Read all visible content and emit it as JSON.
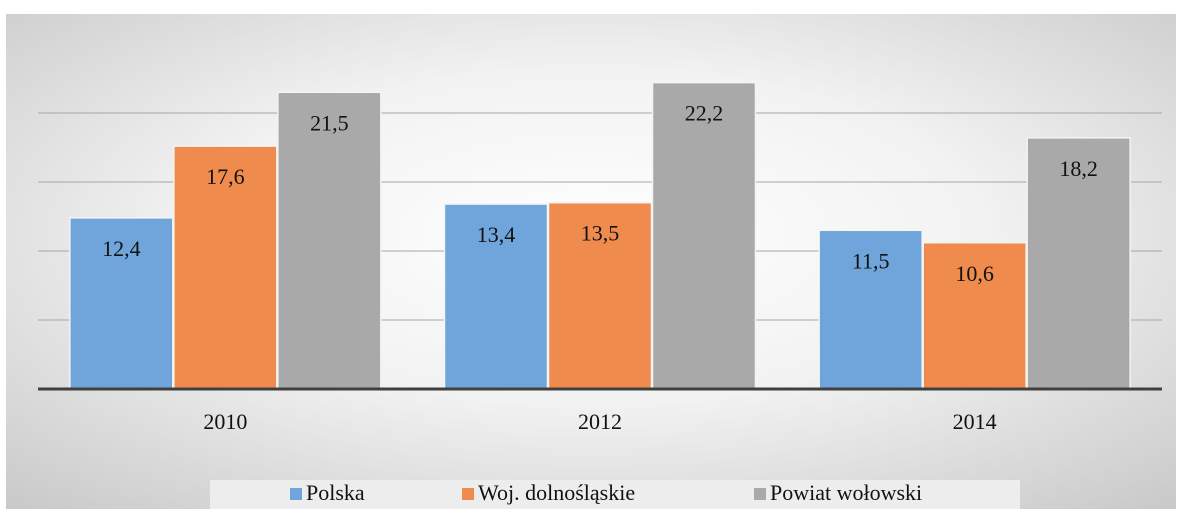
{
  "chart_data": {
    "type": "bar",
    "categories": [
      "2010",
      "2012",
      "2014"
    ],
    "series": [
      {
        "name": "Polska",
        "color": "#6fa5db",
        "values": [
          12.4,
          13.4,
          11.5
        ],
        "value_labels": [
          "12,4",
          "13,4",
          "11,5"
        ]
      },
      {
        "name": "Woj. dolnośląskie",
        "color": "#ef8b4c",
        "values": [
          17.6,
          13.5,
          10.6
        ],
        "value_labels": [
          "17,6",
          "13,5",
          "10,6"
        ]
      },
      {
        "name": "Powiat wołowski",
        "color": "#a9a9a9",
        "values": [
          21.5,
          22.2,
          18.2
        ],
        "value_labels": [
          "21,5",
          "22,2",
          "18,2"
        ]
      }
    ],
    "ylim": [
      0,
      25
    ],
    "yticks": [
      0,
      5,
      10,
      15,
      20
    ],
    "grid": true,
    "legend": "bottom"
  }
}
